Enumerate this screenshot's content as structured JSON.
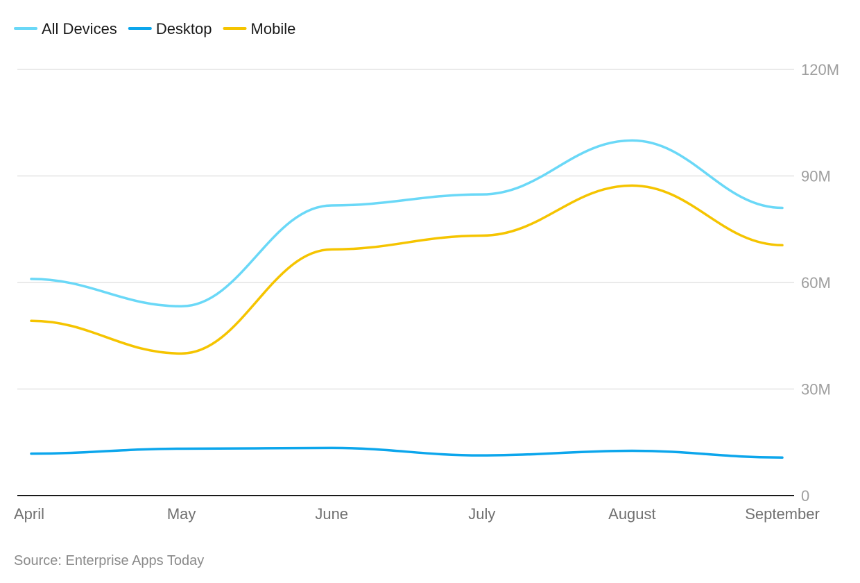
{
  "chart_data": {
    "type": "line",
    "categories": [
      "April",
      "May",
      "June",
      "July",
      "August",
      "September"
    ],
    "series": [
      {
        "name": "All Devices",
        "color": "#6ad8f7",
        "values": [
          61,
          53.3,
          81.7,
          84.8,
          100,
          81
        ]
      },
      {
        "name": "Desktop",
        "color": "#0ca6ec",
        "values": [
          11.8,
          13.2,
          13.4,
          11.3,
          12.6,
          10.7
        ]
      },
      {
        "name": "Mobile",
        "color": "#f5c400",
        "values": [
          49.2,
          40,
          69.3,
          73.2,
          87.3,
          70.5
        ]
      }
    ],
    "y_ticks": [
      {
        "value": 0,
        "label": "0"
      },
      {
        "value": 30,
        "label": "30M"
      },
      {
        "value": 60,
        "label": "60M"
      },
      {
        "value": 90,
        "label": "90M"
      },
      {
        "value": 120,
        "label": "120M"
      }
    ],
    "ylim": [
      0,
      120
    ],
    "y_axis_side": "right",
    "grid": true,
    "legend_position": "top-left",
    "source": "Source: Enterprise Apps Today",
    "title": "",
    "xlabel": "",
    "ylabel": ""
  }
}
